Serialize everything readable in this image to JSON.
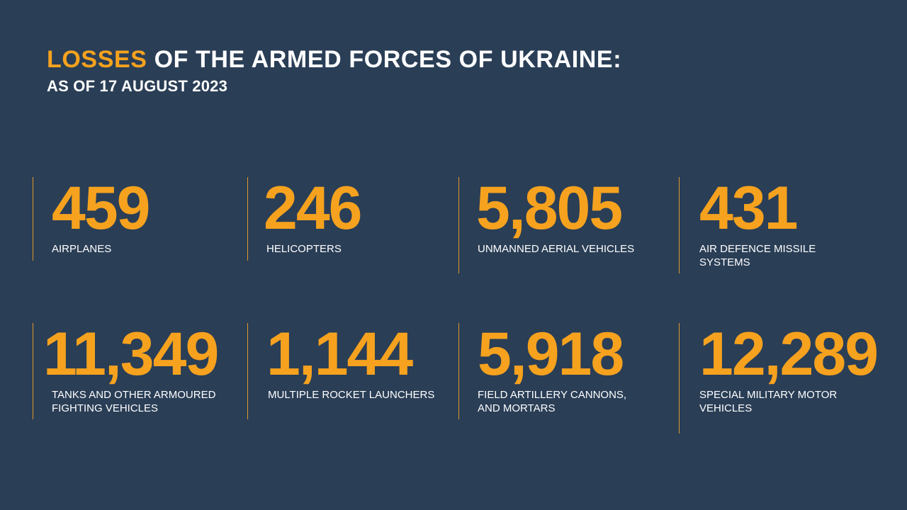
{
  "header": {
    "title_accent": "LOSSES",
    "title_rest": " OF THE ARMED FORCES OF UKRAINE:",
    "subtitle": "AS OF 17 AUGUST 2023"
  },
  "stats": [
    {
      "value": "459",
      "label": "AIRPLANES"
    },
    {
      "value": "246",
      "label": "HELICOPTERS"
    },
    {
      "value": "5,805",
      "label": "UNMANNED AERIAL VEHICLES"
    },
    {
      "value": "431",
      "label": "AIR DEFENCE MISSILE\nSYSTEMS"
    },
    {
      "value": "11,349",
      "label": "TANKS AND OTHER ARMOURED\nFIGHTING VEHICLES"
    },
    {
      "value": "1,144",
      "label": "MULTIPLE ROCKET LAUNCHERS"
    },
    {
      "value": "5,918",
      "label": "FIELD ARTILLERY CANNONS,\nAND MORTARS"
    },
    {
      "value": "12,289",
      "label": "SPECIAL MILITARY MOTOR\nVEHICLES"
    }
  ],
  "colors": {
    "background": "#2a3e56",
    "accent": "#f6a21e",
    "text": "#ffffff"
  }
}
